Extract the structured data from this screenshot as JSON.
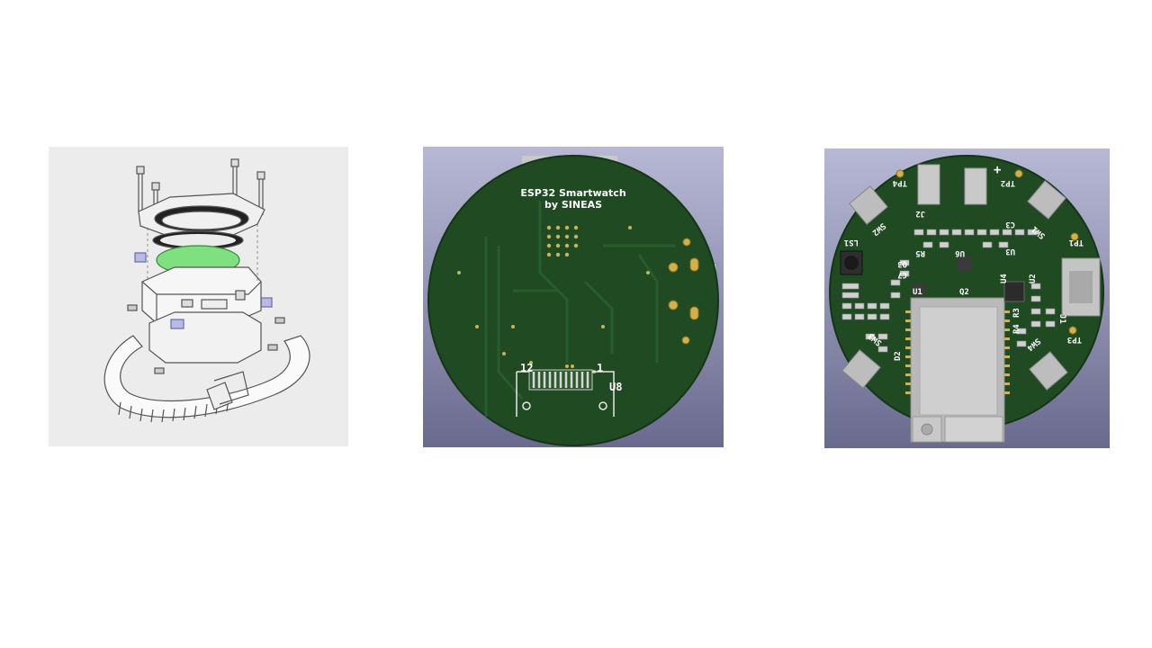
{
  "colors": {
    "slide_background": "#ffffff",
    "drawing_background": "#ececec",
    "pcb_green": "#1f4a22",
    "render_background_top": "#b8b8d6",
    "render_background_bottom": "#6a6a8e",
    "lens_green": "#7ee07e"
  },
  "panels": {
    "exploded": {
      "icon": "watch-exploded-drawing"
    },
    "pcb_back": {
      "icon": "pcb-back-render",
      "title_line1": "ESP32 Smartwatch",
      "title_line2": "by SINEAS",
      "pin_left": "12",
      "pin_right": "1",
      "connector_ref": "U8"
    },
    "pcb_front": {
      "icon": "pcb-front-render",
      "labels": {
        "tp4": "TP4",
        "tp2": "TP2",
        "tp1": "TP1",
        "tp3": "TP3",
        "j2": "J2",
        "j1": "J1",
        "sw2": "SW2",
        "sw1": "SW1",
        "sw3": "SW3",
        "sw4": "SW4",
        "ls1": "LS1",
        "c3": "C3",
        "u3": "U3",
        "u6": "U6",
        "r5": "R5",
        "q3": "Q3",
        "c7": "C7",
        "u1": "U1",
        "q2": "Q2",
        "u4": "U4",
        "u2": "U2",
        "r3": "R3",
        "r4": "R4",
        "d2": "D2",
        "plus": "+"
      }
    }
  }
}
